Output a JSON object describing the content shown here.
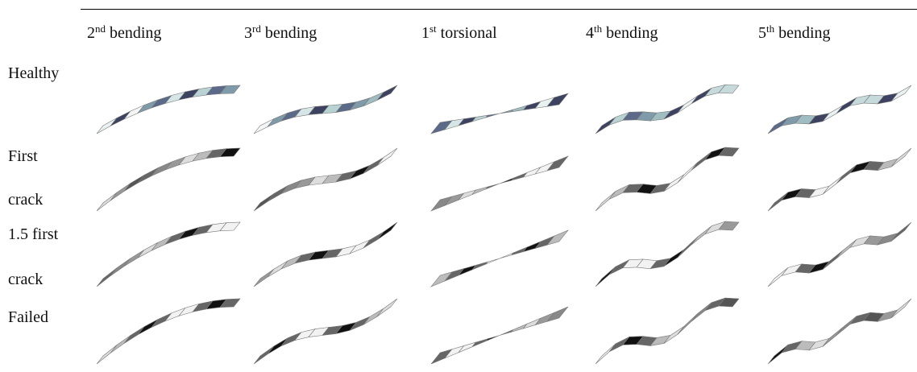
{
  "header": {
    "columns": [
      {
        "ordinal": "2",
        "suffix": "nd",
        "label": "bending"
      },
      {
        "ordinal": "3",
        "suffix": "rd",
        "label": "bending"
      },
      {
        "ordinal": "1",
        "suffix": "st",
        "label": "torsional"
      },
      {
        "ordinal": "4",
        "suffix": "th",
        "label": "bending"
      },
      {
        "ordinal": "5",
        "suffix": "th",
        "label": "bending"
      }
    ]
  },
  "rows": [
    {
      "lines": [
        "Healthy"
      ]
    },
    {
      "lines": [
        "First",
        "crack"
      ]
    },
    {
      "lines": [
        "1.5 first",
        "crack"
      ]
    },
    {
      "lines": [
        "Failed"
      ]
    }
  ]
}
